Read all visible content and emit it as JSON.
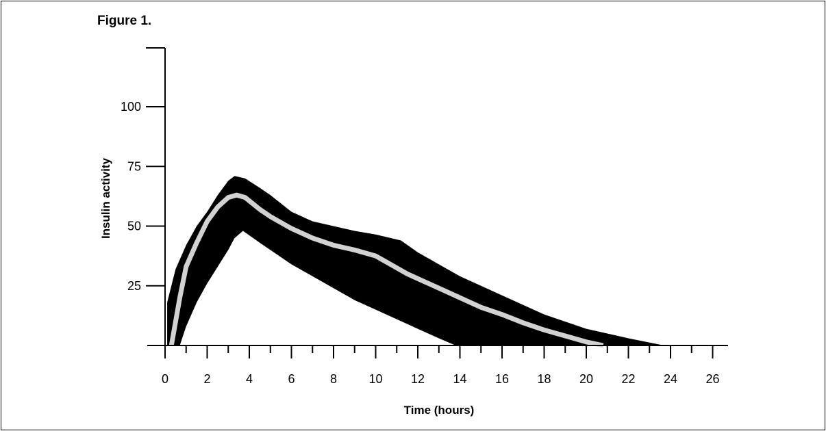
{
  "figure_label": "Figure 1.",
  "chart_data": {
    "type": "area",
    "title": "",
    "xlabel": "Time (hours)",
    "ylabel": "Insulin activity",
    "xlim": [
      0,
      26
    ],
    "ylim": [
      0,
      125
    ],
    "x_ticks": [
      0,
      2,
      4,
      6,
      8,
      10,
      12,
      14,
      16,
      18,
      20,
      22,
      24,
      26
    ],
    "y_ticks": [
      25,
      50,
      75,
      100
    ],
    "grid": false,
    "colors": {
      "band": "#000000",
      "mean_line": "#d1d2d4"
    },
    "band_upper": [
      [
        0.1,
        18
      ],
      [
        0.5,
        32
      ],
      [
        1,
        42
      ],
      [
        1.5,
        50
      ],
      [
        2,
        56
      ],
      [
        2.5,
        63
      ],
      [
        3,
        69
      ],
      [
        3.3,
        71
      ],
      [
        3.8,
        70
      ],
      [
        4.5,
        66
      ],
      [
        5,
        63
      ],
      [
        6,
        56
      ],
      [
        7,
        52
      ],
      [
        8,
        50
      ],
      [
        9,
        48
      ],
      [
        10,
        46.5
      ],
      [
        11.2,
        44
      ],
      [
        12,
        39
      ],
      [
        13,
        34
      ],
      [
        14,
        29
      ],
      [
        16,
        21
      ],
      [
        18,
        13
      ],
      [
        20,
        7
      ],
      [
        22,
        3
      ],
      [
        23.7,
        0
      ]
    ],
    "band_lower": [
      [
        0.7,
        0
      ],
      [
        1,
        8
      ],
      [
        1.5,
        18
      ],
      [
        2,
        26
      ],
      [
        2.5,
        33
      ],
      [
        3,
        40
      ],
      [
        3.3,
        45
      ],
      [
        3.7,
        48
      ],
      [
        4.5,
        43
      ],
      [
        5,
        40
      ],
      [
        6,
        34
      ],
      [
        7,
        29
      ],
      [
        8,
        24
      ],
      [
        9,
        19
      ],
      [
        10,
        15
      ],
      [
        11,
        11
      ],
      [
        12,
        7
      ],
      [
        13,
        3
      ],
      [
        13.8,
        0
      ]
    ],
    "mean_line": [
      [
        0.3,
        0
      ],
      [
        0.7,
        20
      ],
      [
        1,
        33
      ],
      [
        1.5,
        43
      ],
      [
        2,
        52
      ],
      [
        2.5,
        58
      ],
      [
        3,
        62
      ],
      [
        3.4,
        63
      ],
      [
        3.8,
        62
      ],
      [
        4.5,
        57
      ],
      [
        5,
        54
      ],
      [
        6,
        49
      ],
      [
        7,
        45
      ],
      [
        8,
        42
      ],
      [
        9,
        40
      ],
      [
        10,
        37.5
      ],
      [
        10.5,
        35
      ],
      [
        11.5,
        30
      ],
      [
        12,
        28
      ],
      [
        13,
        24
      ],
      [
        14,
        20
      ],
      [
        15,
        16
      ],
      [
        16,
        13
      ],
      [
        17,
        9.5
      ],
      [
        18,
        6.5
      ],
      [
        19,
        4
      ],
      [
        20,
        1.5
      ],
      [
        20.8,
        0
      ]
    ]
  }
}
